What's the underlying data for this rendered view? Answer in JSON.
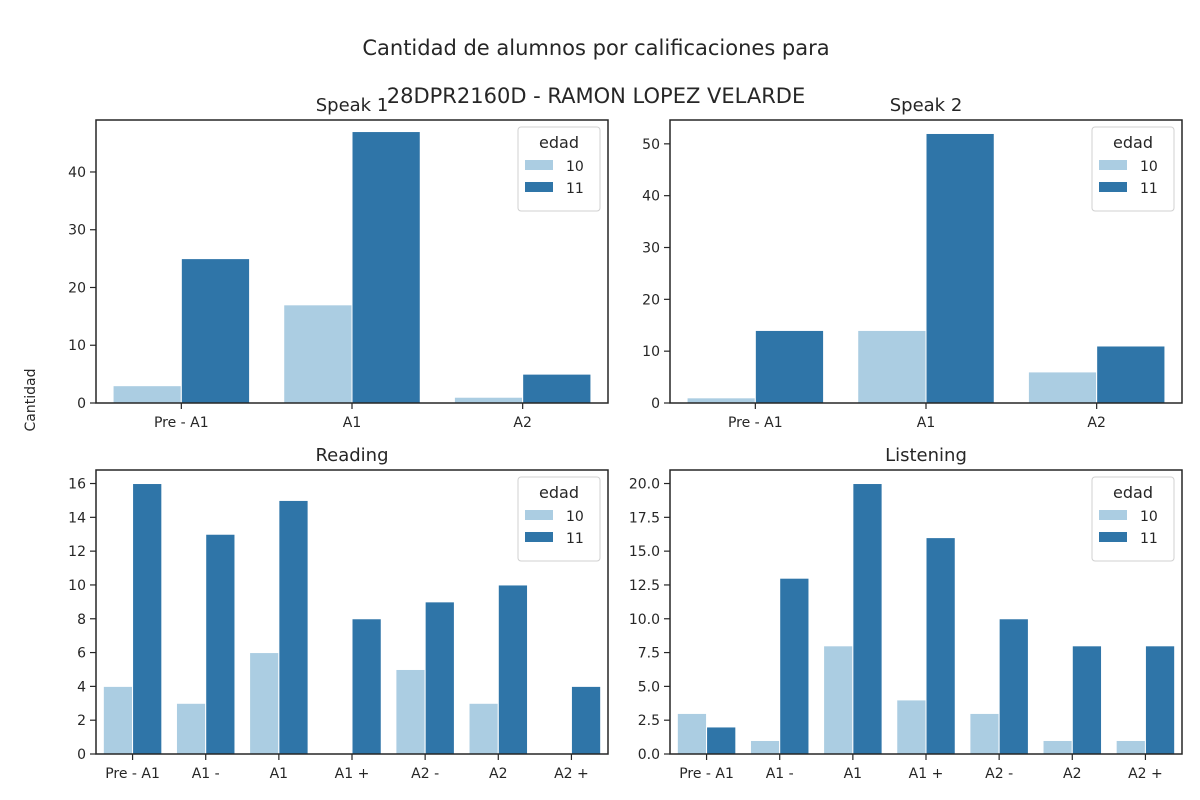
{
  "figure": {
    "title_line1": "Cantidad de alumnos por calificaciones para",
    "title_line2": "28DPR2160D - RAMON LOPEZ VELARDE",
    "ylabel": "Cantidad"
  },
  "colors": {
    "age10": "#abcde2",
    "age11": "#2f75a8",
    "axis": "#262626"
  },
  "chart_data": [
    {
      "type": "bar",
      "title": "Speak 1",
      "categories": [
        "Pre - A1",
        "A1",
        "A2"
      ],
      "series": [
        {
          "name": "10",
          "values": [
            3,
            17,
            1
          ]
        },
        {
          "name": "11",
          "values": [
            25,
            47,
            5
          ]
        }
      ],
      "ylim": [
        0,
        49
      ],
      "yticks": [
        0,
        10,
        20,
        30,
        40
      ],
      "legend": {
        "title": "edad",
        "placement": "top-right"
      }
    },
    {
      "type": "bar",
      "title": "Speak 2",
      "categories": [
        "Pre - A1",
        "A1",
        "A2"
      ],
      "series": [
        {
          "name": "10",
          "values": [
            1,
            14,
            6
          ]
        },
        {
          "name": "11",
          "values": [
            14,
            52,
            11
          ]
        }
      ],
      "ylim": [
        0,
        54.6
      ],
      "yticks": [
        0,
        10,
        20,
        30,
        40,
        50
      ],
      "legend": {
        "title": "edad",
        "placement": "top-right"
      }
    },
    {
      "type": "bar",
      "title": "Reading",
      "categories": [
        "Pre - A1",
        "A1 -",
        "A1",
        "A1 +",
        "A2 -",
        "A2",
        "A2 +"
      ],
      "series": [
        {
          "name": "10",
          "values": [
            4,
            3,
            6,
            0,
            5,
            3,
            0
          ]
        },
        {
          "name": "11",
          "values": [
            16,
            13,
            15,
            8,
            9,
            10,
            4
          ]
        }
      ],
      "ylim": [
        0,
        16.8
      ],
      "yticks": [
        0,
        2,
        4,
        6,
        8,
        10,
        12,
        14,
        16
      ],
      "legend": {
        "title": "edad",
        "placement": "top-right"
      }
    },
    {
      "type": "bar",
      "title": "Listening",
      "categories": [
        "Pre - A1",
        "A1 -",
        "A1",
        "A1 +",
        "A2 -",
        "A2",
        "A2 +"
      ],
      "series": [
        {
          "name": "10",
          "values": [
            3,
            1,
            8,
            4,
            3,
            1,
            1
          ]
        },
        {
          "name": "11",
          "values": [
            2,
            13,
            20,
            16,
            10,
            8,
            8
          ]
        }
      ],
      "ylim": [
        0,
        21
      ],
      "yticks": [
        0.0,
        2.5,
        5.0,
        7.5,
        10.0,
        12.5,
        15.0,
        17.5,
        20.0
      ],
      "ytick_decimals": 1,
      "legend": {
        "title": "edad",
        "placement": "top-right"
      }
    }
  ]
}
